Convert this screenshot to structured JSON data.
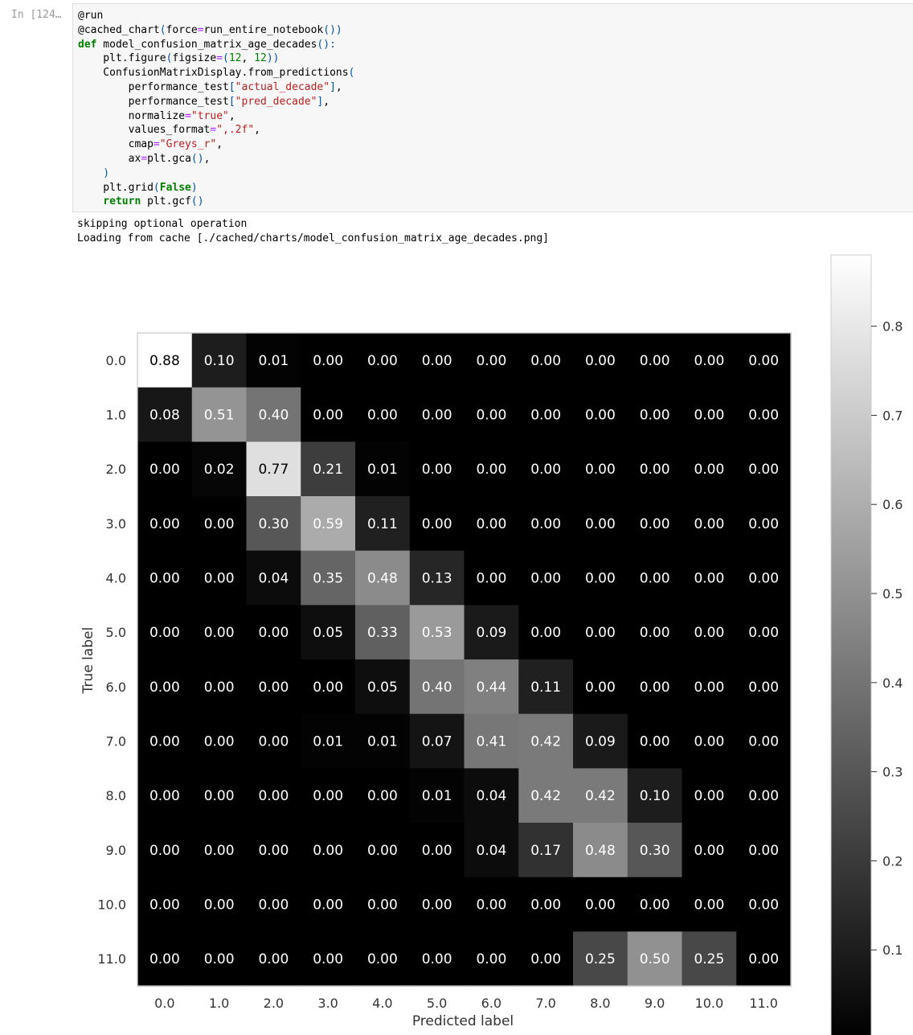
{
  "cell": {
    "prompt": "In [124…",
    "code_lines": [
      [
        [
          "",
          "@run"
        ]
      ],
      [
        [
          "",
          "@cached_chart"
        ],
        [
          "paren",
          "("
        ],
        [
          "",
          "force"
        ],
        [
          "op",
          "="
        ],
        [
          "",
          "run_entire_notebook"
        ],
        [
          "paren",
          "())"
        ]
      ],
      [
        [
          "kw",
          "def"
        ],
        [
          "",
          " model_confusion_matrix_age_decades"
        ],
        [
          "paren",
          "():"
        ]
      ],
      [
        [
          "",
          "    plt.figure"
        ],
        [
          "paren",
          "("
        ],
        [
          "",
          "figsize"
        ],
        [
          "op",
          "="
        ],
        [
          "paren",
          "("
        ],
        [
          "num",
          "12"
        ],
        [
          "",
          ", "
        ],
        [
          "num",
          "12"
        ],
        [
          "paren",
          "))"
        ]
      ],
      [
        [
          "",
          "    ConfusionMatrixDisplay.from_predictions"
        ],
        [
          "paren",
          "("
        ]
      ],
      [
        [
          "",
          "        performance_test"
        ],
        [
          "paren",
          "["
        ],
        [
          "str",
          "\"actual_decade\""
        ],
        [
          "paren",
          "]"
        ],
        [
          "",
          ","
        ]
      ],
      [
        [
          "",
          "        performance_test"
        ],
        [
          "paren",
          "["
        ],
        [
          "str",
          "\"pred_decade\""
        ],
        [
          "paren",
          "]"
        ],
        [
          "",
          ","
        ]
      ],
      [
        [
          "",
          "        normalize"
        ],
        [
          "op",
          "="
        ],
        [
          "str",
          "\"true\""
        ],
        [
          "",
          ","
        ]
      ],
      [
        [
          "",
          "        values_format"
        ],
        [
          "op",
          "="
        ],
        [
          "str",
          "\",.2f\""
        ],
        [
          "",
          ","
        ]
      ],
      [
        [
          "",
          "        cmap"
        ],
        [
          "op",
          "="
        ],
        [
          "str",
          "\"Greys_r\""
        ],
        [
          "",
          ","
        ]
      ],
      [
        [
          "",
          "        ax"
        ],
        [
          "op",
          "="
        ],
        [
          "",
          "plt.gca"
        ],
        [
          "paren",
          "()"
        ],
        [
          "",
          ","
        ]
      ],
      [
        [
          "paren",
          "    )"
        ]
      ],
      [
        [
          "",
          "    plt.grid"
        ],
        [
          "paren",
          "("
        ],
        [
          "bool",
          "False"
        ],
        [
          "paren",
          ")"
        ]
      ],
      [
        [
          "kw",
          "    return"
        ],
        [
          "",
          " plt.gcf"
        ],
        [
          "paren",
          "()"
        ]
      ]
    ]
  },
  "output": {
    "lines": [
      "skipping optional operation",
      "Loading from cache [./cached/charts/model_confusion_matrix_age_decades.png]"
    ]
  },
  "chart_data": {
    "type": "heatmap",
    "title": "",
    "xlabel": "Predicted label",
    "ylabel": "True label",
    "x_tick_labels": [
      "0.0",
      "1.0",
      "2.0",
      "3.0",
      "4.0",
      "5.0",
      "6.0",
      "7.0",
      "8.0",
      "9.0",
      "10.0",
      "11.0"
    ],
    "y_tick_labels": [
      "0.0",
      "1.0",
      "2.0",
      "3.0",
      "4.0",
      "5.0",
      "6.0",
      "7.0",
      "8.0",
      "9.0",
      "10.0",
      "11.0"
    ],
    "cmap": "Greys_r",
    "colorbar": {
      "ticks": [
        "0.1",
        "0.2",
        "0.3",
        "0.4",
        "0.5",
        "0.6",
        "0.7",
        "0.8"
      ],
      "vmin": 0.0,
      "vmax": 0.88
    },
    "grid": false,
    "values": [
      [
        0.88,
        0.1,
        0.01,
        0.0,
        0.0,
        0.0,
        0.0,
        0.0,
        0.0,
        0.0,
        0.0,
        0.0
      ],
      [
        0.08,
        0.51,
        0.4,
        0.0,
        0.0,
        0.0,
        0.0,
        0.0,
        0.0,
        0.0,
        0.0,
        0.0
      ],
      [
        0.0,
        0.02,
        0.77,
        0.21,
        0.01,
        0.0,
        0.0,
        0.0,
        0.0,
        0.0,
        0.0,
        0.0
      ],
      [
        0.0,
        0.0,
        0.3,
        0.59,
        0.11,
        0.0,
        0.0,
        0.0,
        0.0,
        0.0,
        0.0,
        0.0
      ],
      [
        0.0,
        0.0,
        0.04,
        0.35,
        0.48,
        0.13,
        0.0,
        0.0,
        0.0,
        0.0,
        0.0,
        0.0
      ],
      [
        0.0,
        0.0,
        0.0,
        0.05,
        0.33,
        0.53,
        0.09,
        0.0,
        0.0,
        0.0,
        0.0,
        0.0
      ],
      [
        0.0,
        0.0,
        0.0,
        0.0,
        0.05,
        0.4,
        0.44,
        0.11,
        0.0,
        0.0,
        0.0,
        0.0
      ],
      [
        0.0,
        0.0,
        0.0,
        0.01,
        0.01,
        0.07,
        0.41,
        0.42,
        0.09,
        0.0,
        0.0,
        0.0
      ],
      [
        0.0,
        0.0,
        0.0,
        0.0,
        0.0,
        0.01,
        0.04,
        0.42,
        0.42,
        0.1,
        0.0,
        0.0
      ],
      [
        0.0,
        0.0,
        0.0,
        0.0,
        0.0,
        0.0,
        0.04,
        0.17,
        0.48,
        0.3,
        0.0,
        0.0
      ],
      [
        0.0,
        0.0,
        0.0,
        0.0,
        0.0,
        0.0,
        0.0,
        0.0,
        0.0,
        0.0,
        0.0,
        0.0
      ],
      [
        0.0,
        0.0,
        0.0,
        0.0,
        0.0,
        0.0,
        0.0,
        0.0,
        0.25,
        0.5,
        0.25,
        0.0
      ]
    ]
  }
}
